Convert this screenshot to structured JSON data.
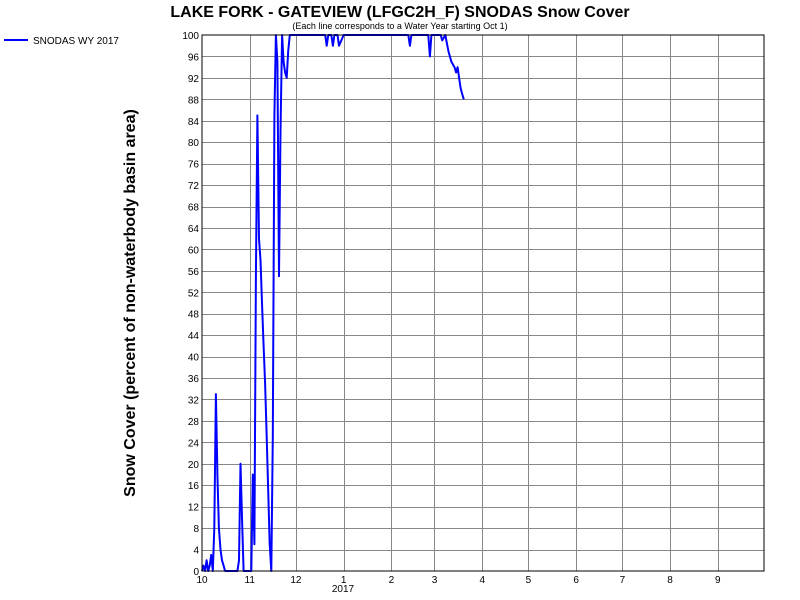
{
  "chart_data": {
    "type": "line",
    "title": "LAKE FORK - GATEVIEW (LFGC2H_F) SNODAS Snow Cover",
    "subtitle": "(Each line corresponds to a Water Year starting Oct 1)",
    "ylabel": "Snow Cover (percent of non-waterbody basin area)",
    "xlabel": "",
    "ylim": [
      0,
      100
    ],
    "y_ticks": [
      0,
      4,
      8,
      12,
      16,
      20,
      24,
      28,
      32,
      36,
      40,
      44,
      48,
      52,
      56,
      60,
      64,
      68,
      72,
      76,
      80,
      84,
      88,
      92,
      96,
      100
    ],
    "x_range": [
      "2016-10-01",
      "2017-10-01"
    ],
    "x_ticks": [
      {
        "date": "2016-10-01",
        "label": "10"
      },
      {
        "date": "2016-11-01",
        "label": "11"
      },
      {
        "date": "2016-12-01",
        "label": "12"
      },
      {
        "date": "2017-01-01",
        "label": "1"
      },
      {
        "date": "2017-02-01",
        "label": "2"
      },
      {
        "date": "2017-03-01",
        "label": "3"
      },
      {
        "date": "2017-04-01",
        "label": "4"
      },
      {
        "date": "2017-05-01",
        "label": "5"
      },
      {
        "date": "2017-06-01",
        "label": "6"
      },
      {
        "date": "2017-07-01",
        "label": "7"
      },
      {
        "date": "2017-08-01",
        "label": "8"
      },
      {
        "date": "2017-09-01",
        "label": "9"
      }
    ],
    "year_label": "2017",
    "grid": true,
    "legend_position": "top-left",
    "series": [
      {
        "name": "SNODAS WY 2017",
        "color": "#0000ff",
        "points": [
          [
            "2016-10-01",
            0
          ],
          [
            "2016-10-02",
            1
          ],
          [
            "2016-10-03",
            0
          ],
          [
            "2016-10-04",
            2
          ],
          [
            "2016-10-05",
            0
          ],
          [
            "2016-10-06",
            1
          ],
          [
            "2016-10-07",
            3
          ],
          [
            "2016-10-08",
            0
          ],
          [
            "2016-10-09",
            8
          ],
          [
            "2016-10-10",
            33
          ],
          [
            "2016-10-11",
            18
          ],
          [
            "2016-10-12",
            8
          ],
          [
            "2016-10-13",
            4
          ],
          [
            "2016-10-14",
            2
          ],
          [
            "2016-10-15",
            1
          ],
          [
            "2016-10-16",
            0
          ],
          [
            "2016-10-22",
            0
          ],
          [
            "2016-10-24",
            0
          ],
          [
            "2016-10-25",
            2
          ],
          [
            "2016-10-26",
            20
          ],
          [
            "2016-10-27",
            10
          ],
          [
            "2016-10-28",
            0
          ],
          [
            "2016-11-02",
            0
          ],
          [
            "2016-11-03",
            18
          ],
          [
            "2016-11-04",
            5
          ],
          [
            "2016-11-05",
            55
          ],
          [
            "2016-11-06",
            85
          ],
          [
            "2016-11-07",
            62
          ],
          [
            "2016-11-08",
            58
          ],
          [
            "2016-11-09",
            50
          ],
          [
            "2016-11-10",
            42
          ],
          [
            "2016-11-11",
            35
          ],
          [
            "2016-11-12",
            25
          ],
          [
            "2016-11-13",
            15
          ],
          [
            "2016-11-14",
            5
          ],
          [
            "2016-11-15",
            0
          ],
          [
            "2016-11-16",
            25
          ],
          [
            "2016-11-17",
            85
          ],
          [
            "2016-11-18",
            100
          ],
          [
            "2016-11-19",
            95
          ],
          [
            "2016-11-20",
            55
          ],
          [
            "2016-11-21",
            82
          ],
          [
            "2016-11-22",
            100
          ],
          [
            "2016-11-23",
            95
          ],
          [
            "2016-11-24",
            93
          ],
          [
            "2016-11-25",
            92
          ],
          [
            "2016-11-26",
            97
          ],
          [
            "2016-11-27",
            100
          ],
          [
            "2016-11-28",
            100
          ],
          [
            "2016-12-20",
            100
          ],
          [
            "2016-12-21",
            98
          ],
          [
            "2016-12-22",
            100
          ],
          [
            "2016-12-24",
            100
          ],
          [
            "2016-12-25",
            98
          ],
          [
            "2016-12-26",
            100
          ],
          [
            "2016-12-28",
            100
          ],
          [
            "2016-12-29",
            98
          ],
          [
            "2017-01-01",
            100
          ],
          [
            "2017-02-12",
            100
          ],
          [
            "2017-02-13",
            98
          ],
          [
            "2017-02-14",
            100
          ],
          [
            "2017-02-25",
            100
          ],
          [
            "2017-02-26",
            96
          ],
          [
            "2017-02-27",
            100
          ],
          [
            "2017-03-05",
            100
          ],
          [
            "2017-03-06",
            99
          ],
          [
            "2017-03-08",
            100
          ],
          [
            "2017-03-10",
            97
          ],
          [
            "2017-03-12",
            95
          ],
          [
            "2017-03-14",
            94
          ],
          [
            "2017-03-15",
            93
          ],
          [
            "2017-03-16",
            94
          ],
          [
            "2017-03-17",
            92
          ],
          [
            "2017-03-18",
            90
          ],
          [
            "2017-03-19",
            89
          ],
          [
            "2017-03-20",
            88
          ]
        ]
      }
    ]
  }
}
